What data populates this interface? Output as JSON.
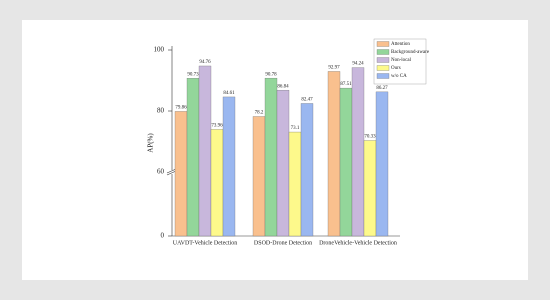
{
  "chart_data": {
    "type": "bar",
    "y_label": "AP(%)",
    "categories": [
      "UAVDT-Vehicle Detection",
      "DSOD-Drone Detection",
      "DroneVehicle-Vehicle Detection"
    ],
    "series": [
      {
        "name": "Attention",
        "color": "#f9c08e",
        "values": [
          79.86,
          78.2,
          92.97
        ]
      },
      {
        "name": "Background-aware",
        "color": "#93d69a",
        "values": [
          90.73,
          90.78,
          87.51
        ]
      },
      {
        "name": "Non-local",
        "color": "#c8b7dc",
        "values": [
          94.76,
          86.84,
          94.24
        ]
      },
      {
        "name": "Ours",
        "color": "#fdf98b",
        "values": [
          73.96,
          73.1,
          70.33
        ]
      },
      {
        "name": "w/o CA",
        "color": "#9ab7f0",
        "values": [
          84.61,
          82.47,
          86.27
        ]
      }
    ],
    "ylim": [
      0,
      100
    ],
    "ybreak": 60,
    "yticks": [
      0,
      60,
      80,
      100
    ],
    "legend": "upper right"
  }
}
